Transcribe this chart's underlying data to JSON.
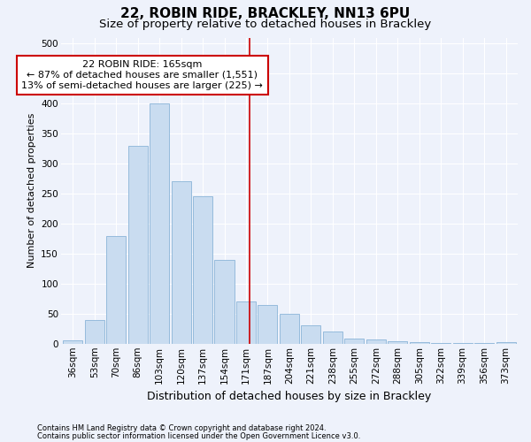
{
  "title": "22, ROBIN RIDE, BRACKLEY, NN13 6PU",
  "subtitle": "Size of property relative to detached houses in Brackley",
  "xlabel": "Distribution of detached houses by size in Brackley",
  "ylabel": "Number of detached properties",
  "bar_labels": [
    "36sqm",
    "53sqm",
    "70sqm",
    "86sqm",
    "103sqm",
    "120sqm",
    "137sqm",
    "154sqm",
    "171sqm",
    "187sqm",
    "204sqm",
    "221sqm",
    "238sqm",
    "255sqm",
    "272sqm",
    "288sqm",
    "305sqm",
    "322sqm",
    "339sqm",
    "356sqm",
    "373sqm"
  ],
  "bar_heights": [
    5,
    40,
    180,
    330,
    400,
    270,
    245,
    140,
    70,
    65,
    50,
    30,
    20,
    8,
    7,
    4,
    2,
    1,
    1,
    1,
    2
  ],
  "bar_color": "#c9dcf0",
  "bar_edgecolor": "#8ab4d8",
  "annotation_box_text": "22 ROBIN RIDE: 165sqm\n← 87% of detached houses are smaller (1,551)\n13% of semi-detached houses are larger (225) →",
  "annotation_box_color": "#ffffff",
  "annotation_box_edgecolor": "#cc0000",
  "annotation_line_color": "#cc0000",
  "footnote_line1": "Contains HM Land Registry data © Crown copyright and database right 2024.",
  "footnote_line2": "Contains public sector information licensed under the Open Government Licence v3.0.",
  "ylim": [
    0,
    510
  ],
  "background_color": "#eef2fb",
  "grid_color": "#ffffff",
  "title_fontsize": 11,
  "subtitle_fontsize": 9.5,
  "tick_fontsize": 7.5,
  "ylabel_fontsize": 8,
  "xlabel_fontsize": 9,
  "footnote_fontsize": 6,
  "annotation_fontsize": 8
}
